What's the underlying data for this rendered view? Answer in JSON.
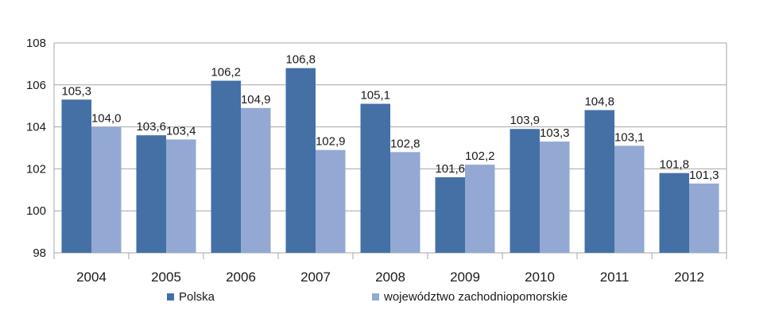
{
  "chart_data": {
    "type": "bar",
    "categories": [
      "2004",
      "2005",
      "2006",
      "2007",
      "2008",
      "2009",
      "2010",
      "2011",
      "2012"
    ],
    "series": [
      {
        "name": "Polska",
        "values": [
          105.3,
          103.6,
          106.2,
          106.8,
          105.1,
          101.6,
          103.9,
          104.8,
          101.8
        ],
        "labels": [
          "105,3",
          "103,6",
          "106,2",
          "106,8",
          "105,1",
          "101,6",
          "103,9",
          "104,8",
          "101,8"
        ],
        "color": "#4470a6"
      },
      {
        "name": "województwo zachodniopomorskie",
        "values": [
          104.0,
          103.4,
          104.9,
          102.9,
          102.8,
          102.2,
          103.3,
          103.1,
          101.3
        ],
        "labels": [
          "104,0",
          "103,4",
          "104,9",
          "102,9",
          "102,8",
          "102,2",
          "103,3",
          "103,1",
          "101,3"
        ],
        "color": "#93a9d3"
      }
    ],
    "ylim": [
      98,
      108
    ],
    "yticks": [
      "98",
      "100",
      "102",
      "104",
      "106",
      "108"
    ],
    "grid": true,
    "legend_position": "bottom"
  }
}
